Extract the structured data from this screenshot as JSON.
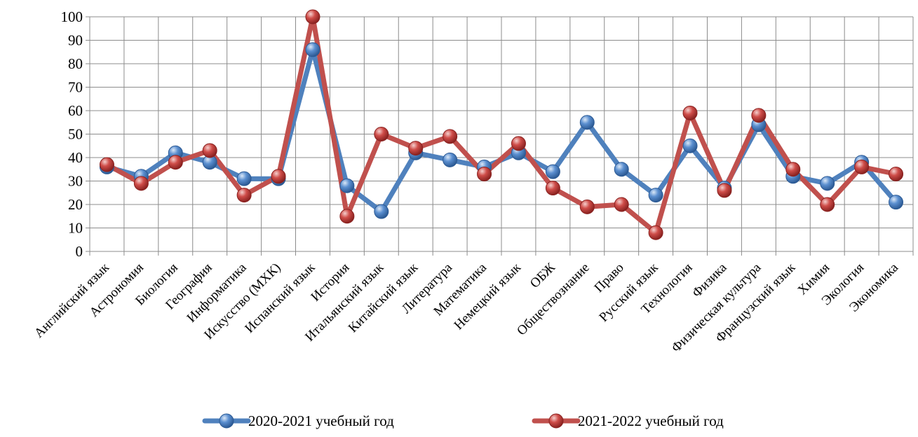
{
  "chart_data": {
    "type": "line",
    "title": "",
    "xlabel": "",
    "ylabel": "",
    "ylim": [
      0,
      100
    ],
    "yticks": [
      0,
      10,
      20,
      30,
      40,
      50,
      60,
      70,
      80,
      90,
      100
    ],
    "grid": true,
    "legend_position": "bottom",
    "categories": [
      "Английский язык",
      "Астрономия",
      "Биология",
      "География",
      "Информатика",
      "Искусство (МХК)",
      "Испанский язык",
      "История",
      "Итальянский язык",
      "Китайский язык",
      "Литература",
      "Математика",
      "Немецкий язык",
      "ОБЖ",
      "Обществознание",
      "Право",
      "Русский язык",
      "Технология",
      "Физика",
      "Физическая культура",
      "Французский язык",
      "Химия",
      "Экология",
      "Экономика"
    ],
    "series": [
      {
        "name": "2020-2021 учебный год",
        "color": "#4f81bd",
        "values": [
          36,
          32,
          42,
          38,
          31,
          31,
          86,
          28,
          17,
          42,
          39,
          36,
          42,
          34,
          55,
          35,
          24,
          45,
          27,
          54,
          32,
          29,
          38,
          21
        ]
      },
      {
        "name": "2021-2022 учебный год",
        "color": "#c0504d",
        "values": [
          37,
          29,
          38,
          43,
          24,
          32,
          100,
          15,
          50,
          44,
          49,
          33,
          46,
          27,
          19,
          20,
          8,
          59,
          26,
          58,
          35,
          20,
          36,
          33
        ]
      }
    ]
  }
}
